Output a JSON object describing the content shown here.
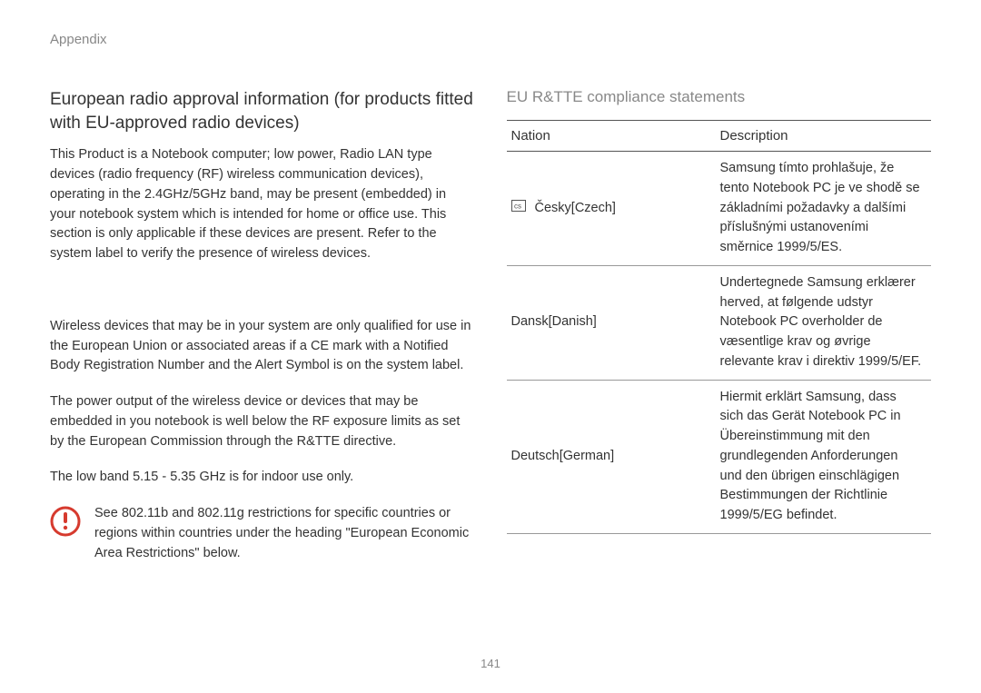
{
  "header_label": "Appendix",
  "page_number": "141",
  "left": {
    "heading": "European radio approval information (for products fitted with EU-approved radio devices)",
    "p1": "This Product is a Notebook computer; low power, Radio LAN type devices (radio frequency (RF) wireless communication devices), operating in the 2.4GHz/5GHz band, may be present (embedded) in your notebook system which is intended for home or office use. This section is only applicable if these devices are present. Refer to the system label to verify the presence of wireless devices.",
    "p2": "Wireless devices that may be in your system are only qualified for use in the European Union or associated areas if a CE mark with a Notified Body Registration Number and the Alert Symbol is on the system label.",
    "p3": "The power output of the wireless device or devices that may be embedded in you notebook is well below the RF exposure limits as set by the European Commission through the R&TTE directive.",
    "p4": "The low band 5.15 - 5.35 GHz is for indoor use only.",
    "note": "See 802.11b and 802.11g restrictions for specific countries or regions within countries under the heading \"European Economic Area Restrictions\" below."
  },
  "right": {
    "sub_heading": "EU R&TTE compliance statements",
    "table": {
      "col_nation": "Nation",
      "col_description": "Description",
      "rows": [
        {
          "has_icon": true,
          "nation": "Česky[Czech]",
          "description": "Samsung tímto prohlašuje, že tento Notebook PC je ve shodě se základními požadavky a dalšími příslušnými ustanoveními směrnice 1999/5/ES."
        },
        {
          "has_icon": false,
          "nation": "Dansk[Danish]",
          "description": "Undertegnede Samsung erklærer herved, at følgende udstyr Notebook PC overholder de væsentlige krav og øvrige relevante krav i direktiv 1999/5/EF."
        },
        {
          "has_icon": false,
          "nation": "Deutsch[German]",
          "description": "Hiermit erklärt Samsung, dass sich das Gerät Notebook PC in Übereinstimmung mit den grundlegenden Anforderungen und den übrigen einschlägigen Bestimmungen der Richtlinie 1999/5/EG befindet."
        }
      ]
    }
  },
  "colors": {
    "text_main": "#333333",
    "text_muted": "#888888",
    "border_dark": "#555555",
    "border_light": "#999999",
    "alert_red": "#d63a2e",
    "background": "#ffffff"
  }
}
